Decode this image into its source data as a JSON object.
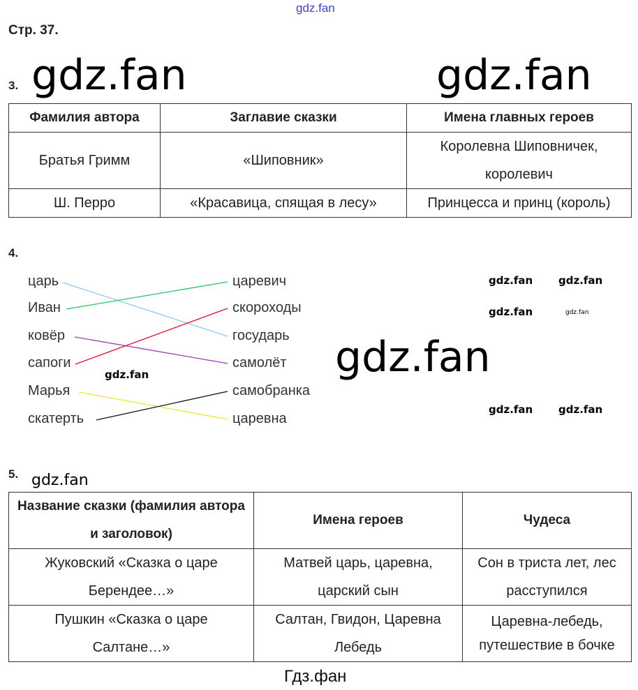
{
  "header": {
    "watermark_top": "gdz.fan",
    "page_label": "Стр. 37."
  },
  "task3": {
    "number": "3.",
    "columns": [
      "Фамилия автора",
      "Заглавие сказки",
      "Имена главных героев"
    ],
    "rows": [
      [
        "Братья Гримм",
        "«Шиповник»",
        "Королевна Шиповничек, королевич"
      ],
      [
        "Ш. Перро",
        "«Красавица, спящая в лесу»",
        "Принцесса и принц (король)"
      ]
    ]
  },
  "task4": {
    "number": "4.",
    "left": [
      "царь",
      "Иван",
      "ковёр",
      "сапоги",
      "Марья",
      "скатерть"
    ],
    "right": [
      "царевич",
      "скороходы",
      "государь",
      "самолёт",
      "самобранка",
      "царевна"
    ],
    "links": [
      {
        "from": 0,
        "to": 2,
        "color": "#8ecde8"
      },
      {
        "from": 1,
        "to": 0,
        "color": "#1ec86a"
      },
      {
        "from": 2,
        "to": 3,
        "color": "#9b3fb0"
      },
      {
        "from": 3,
        "to": 1,
        "color": "#e0102a"
      },
      {
        "from": 4,
        "to": 5,
        "color": "#f0e830"
      },
      {
        "from": 5,
        "to": 4,
        "color": "#111111"
      }
    ]
  },
  "task5": {
    "number": "5.",
    "columns": [
      "Название сказки (фамилия автора и заголовок)",
      "Имена героев",
      "Чудеса"
    ],
    "rows": [
      [
        "Жуковский «Сказка о царе Берендее…»",
        "Матвей царь, царевна, царский сын",
        "Сон в триста лет, лес расступился"
      ],
      [
        "Пушкин «Сказка о царе Салтане…»",
        "Салтан, Гвидон, Царевна Лебедь",
        "Царевна-лебедь, путешествие в бочке"
      ]
    ]
  },
  "watermarks": {
    "text": "gdz.fan"
  },
  "footer": {
    "text": "Гдз.фан"
  }
}
